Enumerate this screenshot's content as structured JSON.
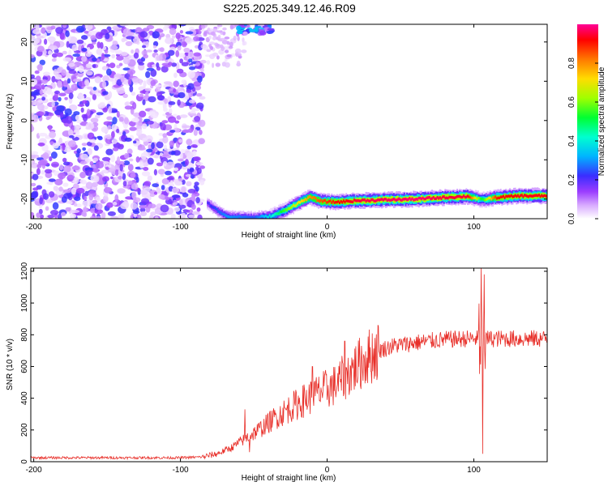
{
  "title": "S225.2025.349.12.46.R09",
  "chart_data": [
    {
      "type": "heatmap",
      "title": "S225.2025.349.12.46.R09",
      "xlabel": "Height of straight line (km)",
      "ylabel": "Frequency (Hz)",
      "xlim": [
        -202,
        150
      ],
      "ylim": [
        -25,
        24.5
      ],
      "xticks": [
        -200,
        -100,
        0,
        100
      ],
      "yticks": [
        -20,
        -10,
        0,
        10,
        20
      ],
      "colorbar": {
        "label": "Normalized spectral amplitude",
        "range": [
          0,
          1
        ],
        "ticks": [
          0.0,
          0.2,
          0.4,
          0.6,
          0.8
        ],
        "colors": [
          "#ffffff",
          "#b450ff",
          "#3232ff",
          "#00c8ff",
          "#00ff64",
          "#b4ff00",
          "#ffdc00",
          "#ff7800",
          "#ff0000",
          "#ff0096"
        ]
      },
      "noise_region": {
        "x_range": [
          -202,
          -85
        ],
        "freq_range": [
          -25,
          24.5
        ],
        "typical_amplitude": 0.1
      },
      "sparse_noise_region": {
        "x_range": [
          -85,
          -55
        ],
        "freq_range": [
          14,
          24.5
        ],
        "typical_amplitude": 0.08
      },
      "ridge": {
        "description": "narrow high-amplitude frequency track",
        "points": [
          {
            "x": -82,
            "freq": -21,
            "amp": 0.2
          },
          {
            "x": -75,
            "freq": -23,
            "amp": 0.25
          },
          {
            "x": -68,
            "freq": -24.5,
            "amp": 0.3
          },
          {
            "x": -50,
            "freq": -24.7,
            "amp": 0.25
          },
          {
            "x": -38,
            "freq": -24.3,
            "amp": 0.4
          },
          {
            "x": -30,
            "freq": -23,
            "amp": 0.55
          },
          {
            "x": -20,
            "freq": -21,
            "amp": 0.7
          },
          {
            "x": -12,
            "freq": -19.5,
            "amp": 0.8
          },
          {
            "x": -5,
            "freq": -20.5,
            "amp": 0.85
          },
          {
            "x": 5,
            "freq": -20.8,
            "amp": 0.9
          },
          {
            "x": 20,
            "freq": -20.4,
            "amp": 0.95
          },
          {
            "x": 40,
            "freq": -20.2,
            "amp": 0.97
          },
          {
            "x": 60,
            "freq": -20.0,
            "amp": 0.98
          },
          {
            "x": 80,
            "freq": -19.6,
            "amp": 0.95
          },
          {
            "x": 95,
            "freq": -19.3,
            "amp": 0.95
          },
          {
            "x": 105,
            "freq": -20.2,
            "amp": 0.5
          },
          {
            "x": 115,
            "freq": -19.6,
            "amp": 0.9
          },
          {
            "x": 130,
            "freq": -19.2,
            "amp": 0.93
          },
          {
            "x": 150,
            "freq": -19.2,
            "amp": 0.93
          }
        ]
      },
      "upper_blob": {
        "x_range": [
          -62,
          -38
        ],
        "freq_range": [
          22,
          24.5
        ],
        "amp": 0.35
      }
    },
    {
      "type": "line",
      "xlabel": "Height of straight line (km)",
      "ylabel": "SNR (10 * v/v)",
      "xlim": [
        -202,
        150
      ],
      "ylim": [
        0,
        1220
      ],
      "xticks": [
        -200,
        -100,
        0,
        100
      ],
      "yticks": [
        0,
        200,
        400,
        600,
        800,
        1000,
        1200
      ],
      "color": "#e8302a",
      "trend": [
        {
          "x": -202,
          "y": 25
        },
        {
          "x": -100,
          "y": 25
        },
        {
          "x": -85,
          "y": 30
        },
        {
          "x": -75,
          "y": 50
        },
        {
          "x": -65,
          "y": 90
        },
        {
          "x": -55,
          "y": 150
        },
        {
          "x": -45,
          "y": 210
        },
        {
          "x": -35,
          "y": 280
        },
        {
          "x": -25,
          "y": 340
        },
        {
          "x": -15,
          "y": 390
        },
        {
          "x": -5,
          "y": 440
        },
        {
          "x": 5,
          "y": 480
        },
        {
          "x": 15,
          "y": 560
        },
        {
          "x": 25,
          "y": 640
        },
        {
          "x": 35,
          "y": 700
        },
        {
          "x": 45,
          "y": 730
        },
        {
          "x": 60,
          "y": 750
        },
        {
          "x": 80,
          "y": 770
        },
        {
          "x": 95,
          "y": 775
        },
        {
          "x": 110,
          "y": 775
        },
        {
          "x": 130,
          "y": 775
        },
        {
          "x": 150,
          "y": 775
        }
      ],
      "spikes": [
        {
          "x": -56,
          "y": 330
        },
        {
          "x": -53,
          "y": 60
        },
        {
          "x": -10,
          "y": 600
        },
        {
          "x": 12,
          "y": 760
        },
        {
          "x": 105,
          "y": 1220
        },
        {
          "x": 106,
          "y": 50
        },
        {
          "x": 107,
          "y": 1180
        }
      ]
    }
  ]
}
